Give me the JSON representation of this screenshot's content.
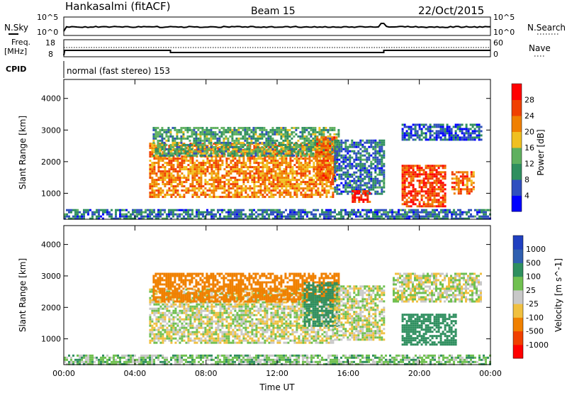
{
  "header": {
    "station": "Hankasalmi (fitACF)",
    "beam": "Beam 15",
    "date": "22/Oct/2015"
  },
  "summary_panels": {
    "sky": {
      "left_label": "N.Sky",
      "left_ticks": [
        "10^5",
        "10^0"
      ],
      "right_label": "N.Search",
      "right_ticks": [
        "10^5",
        "10^0"
      ]
    },
    "freq": {
      "left_label_1": "Freq.",
      "left_label_2": "[MHz]",
      "left_ticks": [
        "18",
        "8"
      ],
      "right_label": "Nave",
      "right_ticks": [
        "60",
        "0"
      ]
    },
    "cpid": {
      "label": "CPID",
      "mode_text": "normal (fast stereo) 153"
    }
  },
  "chart_data": [
    {
      "type": "heatmap",
      "name": "power",
      "ylabel": "Slant Range [km]",
      "xlabel": "Time UT",
      "x_ticks": [
        "00:00",
        "04:00",
        "08:00",
        "12:00",
        "16:00",
        "20:00",
        "00:00"
      ],
      "y_ticks": [
        1000,
        2000,
        3000,
        4000
      ],
      "ylim": [
        180,
        4600
      ],
      "xlim_hours": [
        0,
        24
      ],
      "colorbar": {
        "label": "Power [dB]",
        "ticks": [
          "28",
          "24",
          "20",
          "16",
          "12",
          "8",
          "4"
        ],
        "colors": [
          "#0000ff",
          "#2f4fbf",
          "#2f8f5f",
          "#5fb05f",
          "#f0c020",
          "#f08000",
          "#f04000",
          "#ff0000"
        ]
      },
      "regions": [
        {
          "t0": 4.8,
          "t1": 15.2,
          "r0": 900,
          "r1": 2600,
          "value": 22
        },
        {
          "t0": 5.0,
          "t1": 15.5,
          "r0": 2200,
          "r1": 3100,
          "value": 12
        },
        {
          "t0": 14.2,
          "t1": 15.3,
          "r0": 1400,
          "r1": 2800,
          "value": 24
        },
        {
          "t0": 15.2,
          "t1": 18.0,
          "r0": 1000,
          "r1": 2700,
          "value": 8
        },
        {
          "t0": 16.2,
          "t1": 17.2,
          "r0": 700,
          "r1": 1100,
          "value": 28
        },
        {
          "t0": 19.0,
          "t1": 21.5,
          "r0": 600,
          "r1": 1900,
          "value": 26
        },
        {
          "t0": 21.8,
          "t1": 23.0,
          "r0": 1000,
          "r1": 1700,
          "value": 24
        },
        {
          "t0": 19.0,
          "t1": 23.5,
          "r0": 2700,
          "r1": 3200,
          "value": 6
        },
        {
          "t0": 0.0,
          "t1": 24.0,
          "r0": 200,
          "r1": 500,
          "value": 8
        }
      ]
    },
    {
      "type": "heatmap",
      "name": "velocity",
      "ylabel": "Slant Range [km]",
      "xlabel": "Time UT",
      "x_ticks": [
        "00:00",
        "04:00",
        "08:00",
        "12:00",
        "16:00",
        "20:00",
        "00:00"
      ],
      "y_ticks": [
        1000,
        2000,
        3000,
        4000
      ],
      "ylim": [
        180,
        4600
      ],
      "xlim_hours": [
        0,
        24
      ],
      "colorbar": {
        "label": "Velocity [m s^-1]",
        "ticks": [
          "1000",
          "500",
          "100",
          "25",
          "-25",
          "-100",
          "-500",
          "-1000"
        ],
        "colors": [
          "#2040c0",
          "#3060b0",
          "#2f8f5f",
          "#70c050",
          "#c8c8c8",
          "#f0c040",
          "#f08000",
          "#f04000",
          "#ff0000"
        ]
      },
      "regions": [
        {
          "t0": 4.8,
          "t1": 15.2,
          "r0": 900,
          "r1": 2600,
          "value": 0
        },
        {
          "t0": 5.0,
          "t1": 15.5,
          "r0": 2200,
          "r1": 3100,
          "value": -300
        },
        {
          "t0": 13.5,
          "t1": 15.5,
          "r0": 1400,
          "r1": 2800,
          "value": 200
        },
        {
          "t0": 15.2,
          "t1": 18.0,
          "r0": 1000,
          "r1": 2700,
          "value": 0
        },
        {
          "t0": 19.0,
          "t1": 22.0,
          "r0": 800,
          "r1": 1800,
          "value": 200
        },
        {
          "t0": 18.5,
          "t1": 23.5,
          "r0": 2200,
          "r1": 3100,
          "value": 0
        },
        {
          "t0": 0.0,
          "t1": 24.0,
          "r0": 200,
          "r1": 500,
          "value": 60
        }
      ]
    }
  ],
  "colors": {
    "axis": "#000000",
    "background": "#ffffff"
  }
}
